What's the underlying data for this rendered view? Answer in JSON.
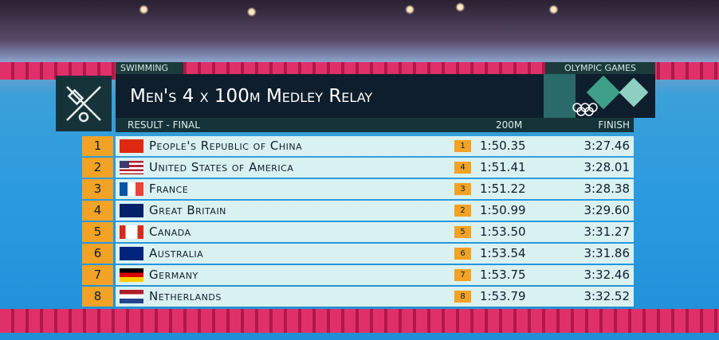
{
  "header": {
    "sport": "SWIMMING",
    "brand": "OLYMPIC GAMES",
    "title": "Men's 4 x 100m Medley Relay",
    "stage": "RESULT - FINAL",
    "col_split": "200M",
    "col_finish": "FINISH"
  },
  "table": {
    "rows": [
      {
        "rank": 1,
        "country": "People's Republic of China",
        "split_rank": 1,
        "split": "1:50.35",
        "finish": "3:27.46"
      },
      {
        "rank": 2,
        "country": "United States of America",
        "split_rank": 4,
        "split": "1:51.41",
        "finish": "3:28.01"
      },
      {
        "rank": 3,
        "country": "France",
        "split_rank": 3,
        "split": "1:51.22",
        "finish": "3:28.38"
      },
      {
        "rank": 4,
        "country": "Great Britain",
        "split_rank": 2,
        "split": "1:50.99",
        "finish": "3:29.60"
      },
      {
        "rank": 5,
        "country": "Canada",
        "split_rank": 5,
        "split": "1:53.50",
        "finish": "3:31.27"
      },
      {
        "rank": 6,
        "country": "Australia",
        "split_rank": 6,
        "split": "1:53.54",
        "finish": "3:31.86"
      },
      {
        "rank": 7,
        "country": "Germany",
        "split_rank": 7,
        "split": "1:53.75",
        "finish": "3:32.46"
      },
      {
        "rank": 8,
        "country": "Netherlands",
        "split_rank": 8,
        "split": "1:53.79",
        "finish": "3:32.52"
      }
    ]
  }
}
